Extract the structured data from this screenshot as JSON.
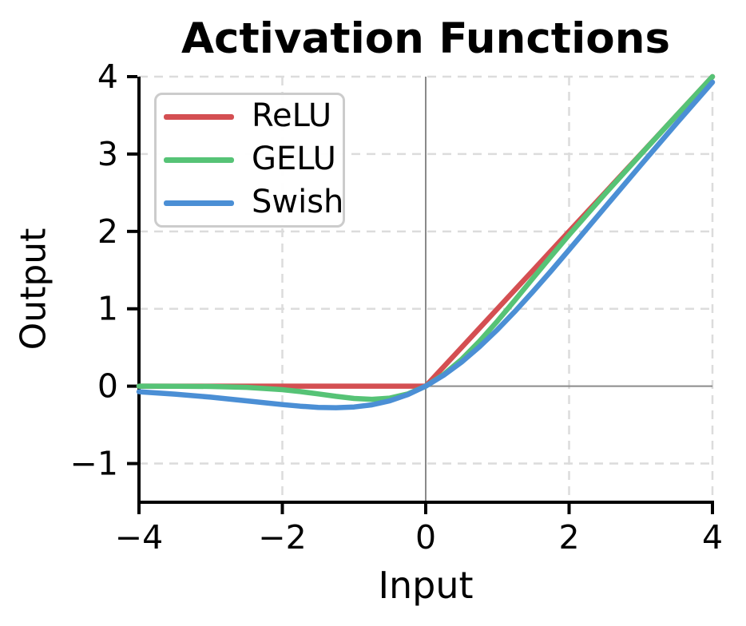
{
  "chart_data": {
    "type": "line",
    "title": "Activation Functions",
    "xlabel": "Input",
    "ylabel": "Output",
    "xlim": [
      -4,
      4
    ],
    "ylim": [
      -1.5,
      4
    ],
    "xticks": {
      "values": [
        -4,
        -2,
        0,
        2,
        4
      ],
      "labels": [
        "−4",
        "−2",
        "0",
        "2",
        "4"
      ]
    },
    "yticks": {
      "values": [
        -1,
        0,
        1,
        2,
        3,
        4
      ],
      "labels": [
        "−1",
        "0",
        "1",
        "2",
        "3",
        "4"
      ]
    },
    "grid": {
      "on": true,
      "style": "dashed",
      "color": "#dcdcdc",
      "zero_lines": true,
      "zero_line_color": "#8a8a8a"
    },
    "legend": {
      "position": "upper-left",
      "border_color": "#cccccc",
      "entries": [
        "ReLU",
        "GELU",
        "Swish"
      ]
    },
    "x": [
      -4,
      -3.5,
      -3,
      -2.5,
      -2,
      -1.75,
      -1.5,
      -1.25,
      -1,
      -0.75,
      -0.5,
      -0.25,
      0,
      0.25,
      0.5,
      0.75,
      1,
      1.25,
      1.5,
      1.75,
      2,
      2.5,
      3,
      3.5,
      4
    ],
    "series": [
      {
        "name": "ReLU",
        "color": "#d44f52",
        "y": [
          0,
          0,
          0,
          0,
          0,
          0,
          0,
          0,
          0,
          0,
          0,
          0,
          0,
          0.25,
          0.5,
          0.75,
          1,
          1.25,
          1.5,
          1.75,
          2,
          2.5,
          3,
          3.5,
          4
        ]
      },
      {
        "name": "GELU",
        "color": "#56c376",
        "y": [
          -0.0001,
          -0.0008,
          -0.004,
          -0.0155,
          -0.0455,
          -0.0702,
          -0.1002,
          -0.132,
          -0.1587,
          -0.17,
          -0.1543,
          -0.1003,
          0,
          0.1497,
          0.3457,
          0.58,
          0.8413,
          1.1183,
          1.3998,
          1.6798,
          1.9545,
          2.4845,
          2.996,
          3.4992,
          4.0
        ]
      },
      {
        "name": "Swish",
        "color": "#4b8fd5",
        "y": [
          -0.0719,
          -0.1026,
          -0.1423,
          -0.1897,
          -0.2384,
          -0.2591,
          -0.2736,
          -0.2784,
          -0.2689,
          -0.2406,
          -0.1888,
          -0.1095,
          0,
          0.1405,
          0.3112,
          0.5094,
          0.7311,
          0.9717,
          1.2264,
          1.4909,
          1.7616,
          2.3104,
          2.8577,
          3.3974,
          3.928
        ]
      }
    ]
  }
}
